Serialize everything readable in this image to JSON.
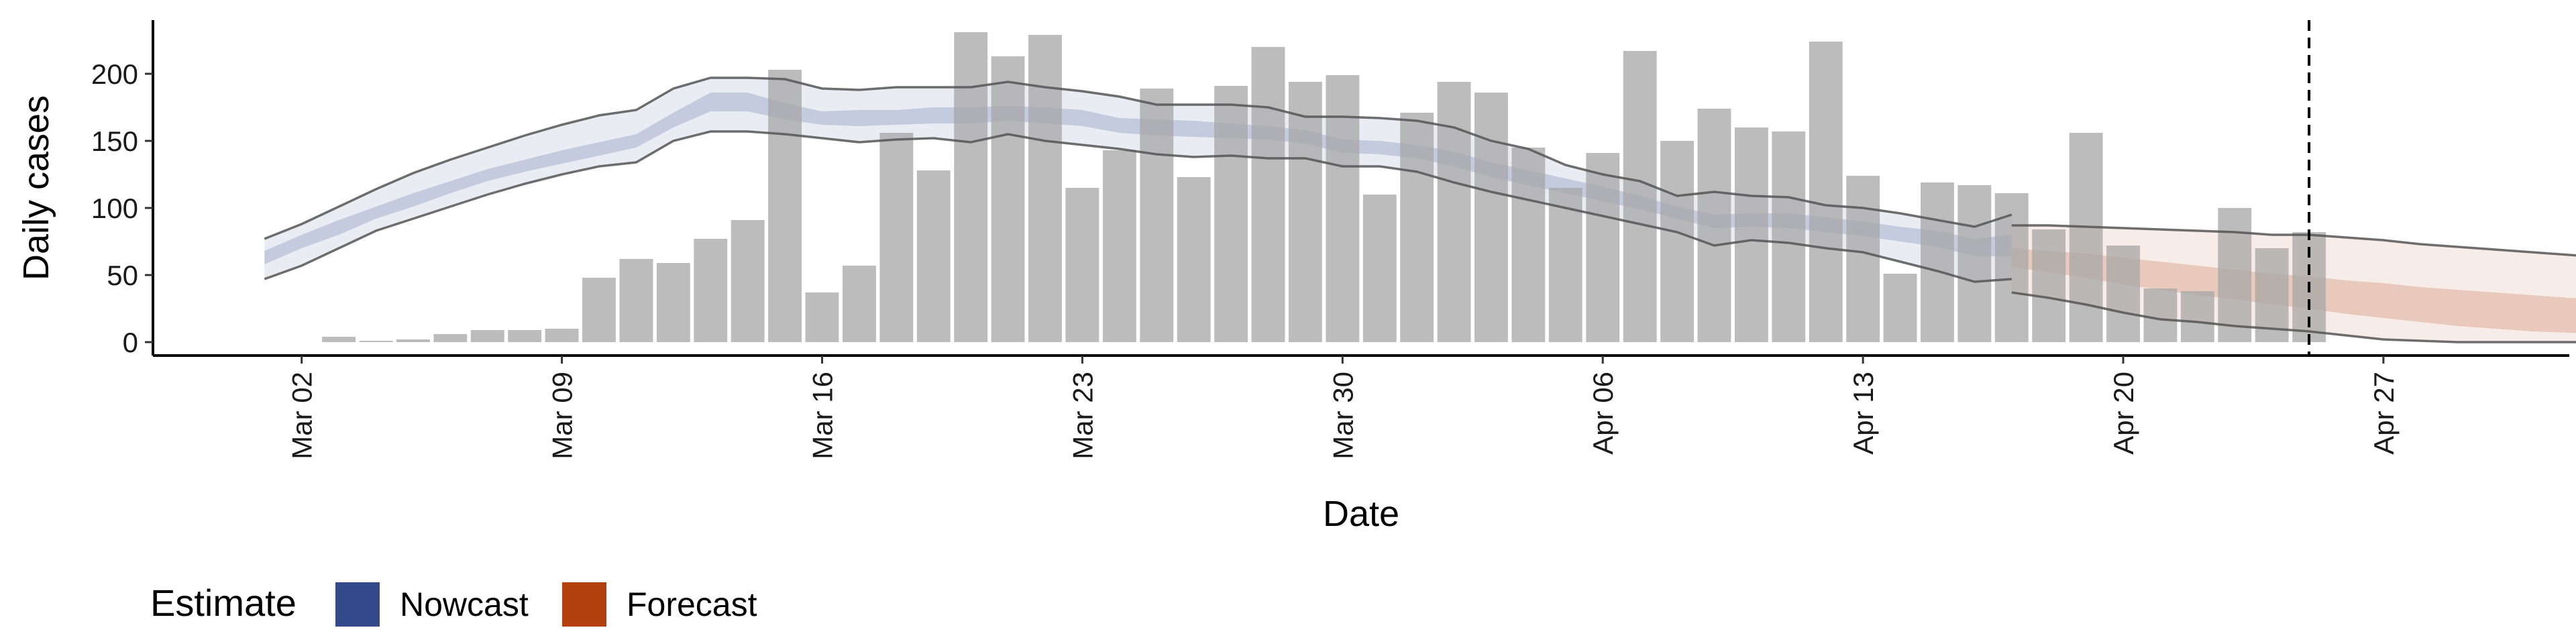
{
  "chart_data": {
    "type": "bar",
    "xlabel": "Date",
    "ylabel": "Daily cases",
    "ylim": [
      -10,
      240
    ],
    "y_ticks": [
      0,
      50,
      100,
      150,
      200
    ],
    "x_ticks": [
      "Mar 02",
      "Mar 09",
      "Mar 16",
      "Mar 23",
      "Mar 30",
      "Apr 06",
      "Apr 13",
      "Apr 20",
      "Apr 27"
    ],
    "x_start": "2020-02-27",
    "x_end": "2020-05-02",
    "observed_cases": {
      "start_date": "2020-03-03",
      "values": [
        4,
        1,
        2,
        6,
        9,
        9,
        10,
        48,
        62,
        59,
        77,
        91,
        203,
        37,
        57,
        156,
        128,
        231,
        213,
        229,
        115,
        143,
        189,
        123,
        191,
        220,
        194,
        199,
        110,
        171,
        194,
        186,
        145,
        115,
        141,
        217,
        150,
        174,
        160,
        157,
        224,
        124,
        51,
        119,
        117,
        111,
        84,
        156,
        72,
        40,
        38,
        100,
        70,
        82
      ]
    },
    "nowcast": {
      "name": "Nowcast",
      "color": "#34498a",
      "start_date": "2020-03-01",
      "lower90": [
        47,
        57,
        70,
        83,
        92,
        101,
        110,
        118,
        125,
        131,
        134,
        150,
        157,
        157,
        155,
        152,
        149,
        151,
        152,
        149,
        155,
        150,
        147,
        144,
        140,
        138,
        139,
        137,
        137,
        131,
        131,
        127,
        119,
        112,
        106,
        100,
        94,
        88,
        82,
        72,
        76,
        74,
        70,
        67,
        60,
        53,
        45,
        47
      ],
      "lower50": [
        58,
        70,
        80,
        92,
        101,
        111,
        120,
        127,
        133,
        139,
        145,
        160,
        172,
        172,
        166,
        162,
        161,
        162,
        163,
        163,
        165,
        163,
        161,
        156,
        154,
        153,
        152,
        151,
        148,
        141,
        140,
        137,
        131,
        123,
        117,
        111,
        105,
        99,
        92,
        85,
        86,
        85,
        82,
        79,
        75,
        71,
        64,
        64
      ],
      "median": [
        63,
        75,
        85,
        96,
        105,
        115,
        124,
        131,
        138,
        144,
        150,
        165,
        179,
        179,
        172,
        167,
        167,
        167,
        169,
        169,
        170,
        169,
        167,
        161,
        160,
        159,
        157,
        155,
        152,
        146,
        145,
        142,
        136,
        128,
        122,
        116,
        111,
        104,
        96,
        89,
        91,
        90,
        87,
        84,
        80,
        77,
        70,
        72
      ],
      "upper50": [
        68,
        80,
        91,
        101,
        111,
        120,
        129,
        136,
        143,
        149,
        155,
        171,
        186,
        186,
        178,
        172,
        173,
        173,
        175,
        175,
        176,
        175,
        173,
        167,
        166,
        165,
        163,
        161,
        158,
        151,
        150,
        147,
        142,
        134,
        128,
        122,
        116,
        109,
        101,
        95,
        96,
        96,
        93,
        90,
        86,
        83,
        77,
        80
      ],
      "upper90": [
        77,
        88,
        101,
        114,
        126,
        136,
        145,
        154,
        162,
        169,
        173,
        189,
        197,
        197,
        196,
        189,
        188,
        190,
        190,
        190,
        194,
        190,
        187,
        183,
        177,
        177,
        177,
        175,
        168,
        168,
        167,
        165,
        160,
        150,
        144,
        132,
        125,
        120,
        109,
        112,
        109,
        108,
        102,
        100,
        96,
        91,
        86,
        95
      ]
    },
    "forecast": {
      "name": "Forecast",
      "color": "#b5400f",
      "start_date": "2020-04-17",
      "lower90": [
        37,
        33,
        28,
        22,
        17,
        15,
        12,
        10,
        8,
        5,
        2,
        1,
        0,
        0,
        0,
        0,
        0,
        0,
        0
      ],
      "lower50": [
        56,
        52,
        48,
        43,
        39,
        35,
        32,
        28,
        25,
        21,
        18,
        15,
        12,
        10,
        8,
        7,
        6,
        5,
        5
      ],
      "median": [
        63,
        60,
        56,
        53,
        49,
        45,
        42,
        39,
        36,
        33,
        30,
        27,
        25,
        23,
        21,
        19,
        18,
        16,
        15
      ],
      "upper50": [
        70,
        68,
        66,
        63,
        60,
        57,
        54,
        51,
        49,
        46,
        44,
        41,
        39,
        37,
        35,
        33,
        31,
        30,
        28
      ],
      "upper90": [
        87,
        87,
        86,
        85,
        84,
        83,
        82,
        80,
        80,
        78,
        76,
        73,
        71,
        69,
        67,
        65,
        63,
        61,
        58
      ]
    },
    "vline_date": "2020-04-25",
    "legend": {
      "title": "Estimate",
      "position": "bottom-left",
      "entries": [
        {
          "label": "Nowcast",
          "color": "#34498a"
        },
        {
          "label": "Forecast",
          "color": "#b5400f"
        }
      ]
    },
    "grid": false
  }
}
